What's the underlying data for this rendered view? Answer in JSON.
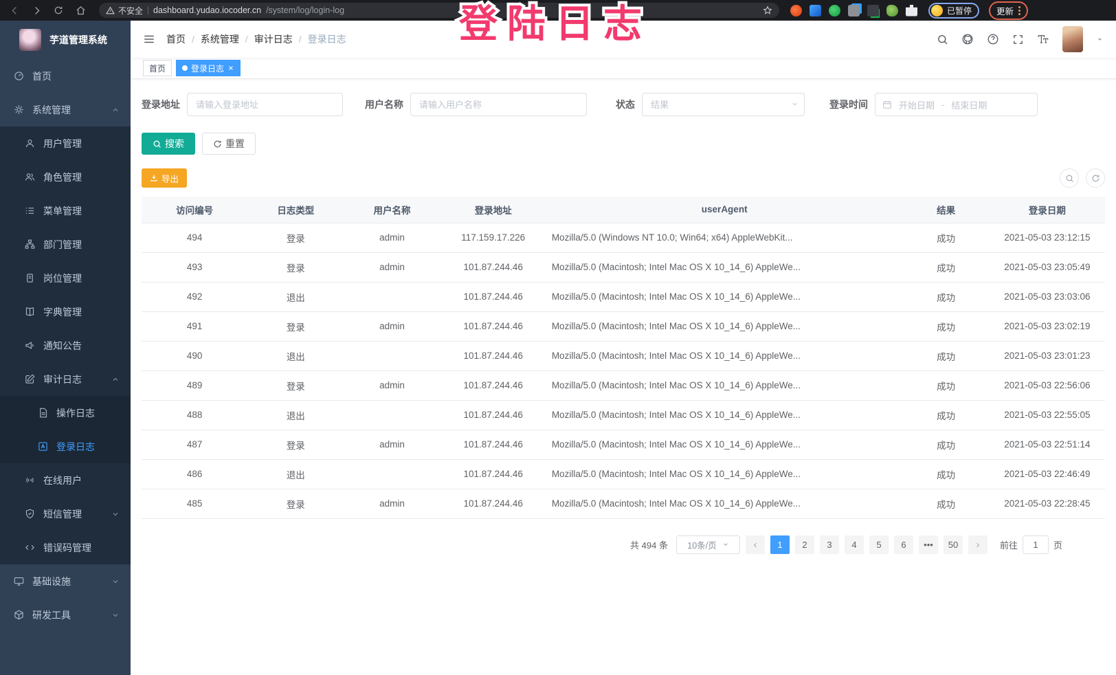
{
  "browser": {
    "security_label": "不安全",
    "url_host": "dashboard.yudao.iocoder.cn",
    "url_path": "/system/log/login-log",
    "profile_status": "已暂停",
    "update_label": "更新"
  },
  "annotation": {
    "text": "登陆日志",
    "color": "#f23a6d"
  },
  "sidebar": {
    "app_title": "芋道管理系统",
    "items": [
      {
        "key": "home",
        "label": "首页",
        "icon": "i-dashboard",
        "level": 1
      },
      {
        "key": "system-management",
        "label": "系统管理",
        "icon": "i-gear",
        "level": 1,
        "chevron": "up"
      },
      {
        "key": "user-management",
        "label": "用户管理",
        "icon": "i-user",
        "level": 2
      },
      {
        "key": "role-management",
        "label": "角色管理",
        "icon": "i-users",
        "level": 2
      },
      {
        "key": "menu-management",
        "label": "菜单管理",
        "icon": "i-list",
        "level": 2
      },
      {
        "key": "dept-management",
        "label": "部门管理",
        "icon": "i-tree",
        "level": 2
      },
      {
        "key": "post-management",
        "label": "岗位管理",
        "icon": "i-badge",
        "level": 2
      },
      {
        "key": "dict-management",
        "label": "字典管理",
        "icon": "i-book",
        "level": 2
      },
      {
        "key": "notice-announcement",
        "label": "通知公告",
        "icon": "i-megaphone",
        "level": 2
      },
      {
        "key": "audit-log",
        "label": "审计日志",
        "icon": "i-edit",
        "level": 2,
        "chevron": "up"
      },
      {
        "key": "operation-log",
        "label": "操作日志",
        "icon": "i-doc",
        "level": 3
      },
      {
        "key": "login-log",
        "label": "登录日志",
        "icon": "i-login",
        "level": 3,
        "active": true
      },
      {
        "key": "online-users",
        "label": "在线用户",
        "icon": "i-wifi",
        "level": 2
      },
      {
        "key": "sms-management",
        "label": "短信管理",
        "icon": "i-shield",
        "level": 2,
        "chevron": "down"
      },
      {
        "key": "error-code-management",
        "label": "错误码管理",
        "icon": "i-code",
        "level": 2
      },
      {
        "key": "infrastructure",
        "label": "基础设施",
        "icon": "i-monitor",
        "level": 1,
        "chevron": "down"
      },
      {
        "key": "dev-tools",
        "label": "研发工具",
        "icon": "i-box",
        "level": 1,
        "chevron": "down"
      }
    ]
  },
  "header": {
    "breadcrumb": [
      "首页",
      "系统管理",
      "审计日志",
      "登录日志"
    ]
  },
  "tags": [
    {
      "label": "首页",
      "active": false,
      "closable": false
    },
    {
      "label": "登录日志",
      "active": true,
      "closable": true
    }
  ],
  "filters": {
    "login_address": {
      "label": "登录地址",
      "placeholder": "请输入登录地址"
    },
    "username": {
      "label": "用户名称",
      "placeholder": "请输入用户名称"
    },
    "status": {
      "label": "状态",
      "placeholder": "结果"
    },
    "login_time": {
      "label": "登录时间",
      "start_placeholder": "开始日期",
      "separator": "-",
      "end_placeholder": "结束日期"
    }
  },
  "actions": {
    "search": "搜索",
    "reset": "重置",
    "export": "导出"
  },
  "table": {
    "headers": [
      "访问编号",
      "日志类型",
      "用户名称",
      "登录地址",
      "userAgent",
      "结果",
      "登录日期"
    ],
    "rows": [
      [
        "494",
        "登录",
        "admin",
        "117.159.17.226",
        "Mozilla/5.0 (Windows NT 10.0; Win64; x64) AppleWebKit...",
        "成功",
        "2021-05-03 23:12:15"
      ],
      [
        "493",
        "登录",
        "admin",
        "101.87.244.46",
        "Mozilla/5.0 (Macintosh; Intel Mac OS X 10_14_6) AppleWe...",
        "成功",
        "2021-05-03 23:05:49"
      ],
      [
        "492",
        "退出",
        "",
        "101.87.244.46",
        "Mozilla/5.0 (Macintosh; Intel Mac OS X 10_14_6) AppleWe...",
        "成功",
        "2021-05-03 23:03:06"
      ],
      [
        "491",
        "登录",
        "admin",
        "101.87.244.46",
        "Mozilla/5.0 (Macintosh; Intel Mac OS X 10_14_6) AppleWe...",
        "成功",
        "2021-05-03 23:02:19"
      ],
      [
        "490",
        "退出",
        "",
        "101.87.244.46",
        "Mozilla/5.0 (Macintosh; Intel Mac OS X 10_14_6) AppleWe...",
        "成功",
        "2021-05-03 23:01:23"
      ],
      [
        "489",
        "登录",
        "admin",
        "101.87.244.46",
        "Mozilla/5.0 (Macintosh; Intel Mac OS X 10_14_6) AppleWe...",
        "成功",
        "2021-05-03 22:56:06"
      ],
      [
        "488",
        "退出",
        "",
        "101.87.244.46",
        "Mozilla/5.0 (Macintosh; Intel Mac OS X 10_14_6) AppleWe...",
        "成功",
        "2021-05-03 22:55:05"
      ],
      [
        "487",
        "登录",
        "admin",
        "101.87.244.46",
        "Mozilla/5.0 (Macintosh; Intel Mac OS X 10_14_6) AppleWe...",
        "成功",
        "2021-05-03 22:51:14"
      ],
      [
        "486",
        "退出",
        "",
        "101.87.244.46",
        "Mozilla/5.0 (Macintosh; Intel Mac OS X 10_14_6) AppleWe...",
        "成功",
        "2021-05-03 22:46:49"
      ],
      [
        "485",
        "登录",
        "admin",
        "101.87.244.46",
        "Mozilla/5.0 (Macintosh; Intel Mac OS X 10_14_6) AppleWe...",
        "成功",
        "2021-05-03 22:28:45"
      ]
    ]
  },
  "pagination": {
    "total_text": "共 494 条",
    "page_size": "10条/页",
    "pages": [
      "1",
      "2",
      "3",
      "4",
      "5",
      "6",
      "•••",
      "50"
    ],
    "active_page": "1",
    "prev": "‹",
    "next": "›",
    "goto_label": "前往",
    "goto_value": "1",
    "goto_unit": "页"
  },
  "colors": {
    "accent": "#409eff",
    "search_button": "#12ab96",
    "export_button": "#f5a623",
    "annotation": "#f23a6d",
    "sidebar_bg": "#304156",
    "submenu_bg": "#1f2d3d",
    "success_text": "#606266"
  }
}
